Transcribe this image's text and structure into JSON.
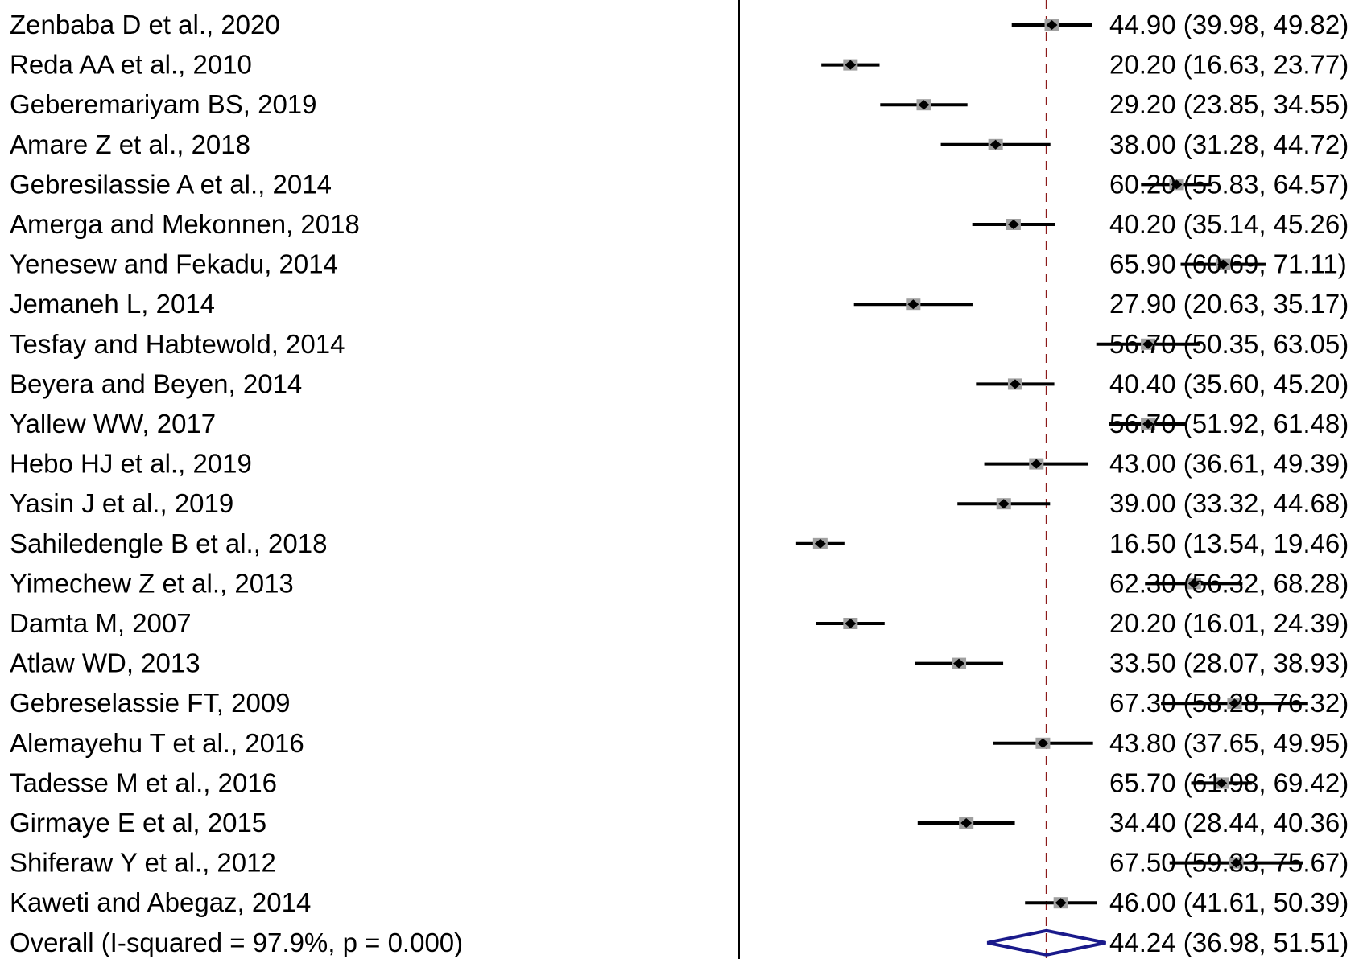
{
  "chart_data": {
    "type": "forest",
    "title": "",
    "xlabel": "",
    "ylabel": "",
    "xlim": [
      10,
      80
    ],
    "reference_line": 44.24,
    "grid": false,
    "legend": "none",
    "colors": {
      "study_marker": "#000000",
      "weight_box": "#a0a0a0",
      "reference_line": "#8b1a1a",
      "overall_diamond": "#1a1a8b",
      "text": "#000000"
    },
    "studies": [
      {
        "label": "Zenbaba D et al., 2020",
        "estimate": 44.9,
        "lower": 39.98,
        "upper": 49.82,
        "ci_text": "44.90 (39.98, 49.82)"
      },
      {
        "label": "Reda AA et al., 2010",
        "estimate": 20.2,
        "lower": 16.63,
        "upper": 23.77,
        "ci_text": "20.20 (16.63, 23.77)"
      },
      {
        "label": "Geberemariyam BS, 2019",
        "estimate": 29.2,
        "lower": 23.85,
        "upper": 34.55,
        "ci_text": "29.20 (23.85, 34.55)"
      },
      {
        "label": "Amare Z et al., 2018",
        "estimate": 38.0,
        "lower": 31.28,
        "upper": 44.72,
        "ci_text": "38.00 (31.28, 44.72)"
      },
      {
        "label": "Gebresilassie A et al., 2014",
        "estimate": 60.2,
        "lower": 55.83,
        "upper": 64.57,
        "ci_text": "60.20 (55.83, 64.57)"
      },
      {
        "label": "Amerga and Mekonnen, 2018",
        "estimate": 40.2,
        "lower": 35.14,
        "upper": 45.26,
        "ci_text": "40.20 (35.14, 45.26)"
      },
      {
        "label": "Yenesew and Fekadu, 2014",
        "estimate": 65.9,
        "lower": 60.69,
        "upper": 71.11,
        "ci_text": "65.90 (60.69, 71.11)"
      },
      {
        "label": "Jemaneh L, 2014",
        "estimate": 27.9,
        "lower": 20.63,
        "upper": 35.17,
        "ci_text": "27.90 (20.63, 35.17)"
      },
      {
        "label": "Tesfay and Habtewold, 2014",
        "estimate": 56.7,
        "lower": 50.35,
        "upper": 63.05,
        "ci_text": "56.70 (50.35, 63.05)"
      },
      {
        "label": "Beyera and Beyen, 2014",
        "estimate": 40.4,
        "lower": 35.6,
        "upper": 45.2,
        "ci_text": "40.40 (35.60, 45.20)"
      },
      {
        "label": "Yallew WW, 2017",
        "estimate": 56.7,
        "lower": 51.92,
        "upper": 61.48,
        "ci_text": "56.70 (51.92, 61.48)"
      },
      {
        "label": "Hebo HJ et al., 2019",
        "estimate": 43.0,
        "lower": 36.61,
        "upper": 49.39,
        "ci_text": "43.00 (36.61, 49.39)"
      },
      {
        "label": "Yasin J et al., 2019",
        "estimate": 39.0,
        "lower": 33.32,
        "upper": 44.68,
        "ci_text": "39.00 (33.32, 44.68)"
      },
      {
        "label": "Sahiledengle B et al., 2018",
        "estimate": 16.5,
        "lower": 13.54,
        "upper": 19.46,
        "ci_text": "16.50 (13.54, 19.46)"
      },
      {
        "label": "Yimechew Z et al., 2013",
        "estimate": 62.3,
        "lower": 56.32,
        "upper": 68.28,
        "ci_text": "62.30 (56.32, 68.28)"
      },
      {
        "label": "Damta M, 2007",
        "estimate": 20.2,
        "lower": 16.01,
        "upper": 24.39,
        "ci_text": "20.20 (16.01, 24.39)"
      },
      {
        "label": "Atlaw WD, 2013",
        "estimate": 33.5,
        "lower": 28.07,
        "upper": 38.93,
        "ci_text": "33.50 (28.07, 38.93)"
      },
      {
        "label": "Gebreselassie FT, 2009",
        "estimate": 67.3,
        "lower": 58.28,
        "upper": 76.32,
        "ci_text": "67.30 (58.28, 76.32)"
      },
      {
        "label": "Alemayehu T et al., 2016",
        "estimate": 43.8,
        "lower": 37.65,
        "upper": 49.95,
        "ci_text": "43.80 (37.65, 49.95)"
      },
      {
        "label": "Tadesse M et al., 2016",
        "estimate": 65.7,
        "lower": 61.98,
        "upper": 69.42,
        "ci_text": "65.70 (61.98, 69.42)"
      },
      {
        "label": "Girmaye E et al, 2015",
        "estimate": 34.4,
        "lower": 28.44,
        "upper": 40.36,
        "ci_text": "34.40 (28.44, 40.36)"
      },
      {
        "label": "Shiferaw Y et al., 2012",
        "estimate": 67.5,
        "lower": 59.33,
        "upper": 75.67,
        "ci_text": "67.50 (59.33, 75.67)"
      },
      {
        "label": "Kaweti and  Abegaz, 2014",
        "estimate": 46.0,
        "lower": 41.61,
        "upper": 50.39,
        "ci_text": "46.00 (41.61, 50.39)"
      }
    ],
    "overall": {
      "label": "Overall  (I-squared = 97.9%, p = 0.000)",
      "estimate": 44.24,
      "lower": 36.98,
      "upper": 51.51,
      "ci_text": "44.24 (36.98, 51.51)"
    }
  }
}
